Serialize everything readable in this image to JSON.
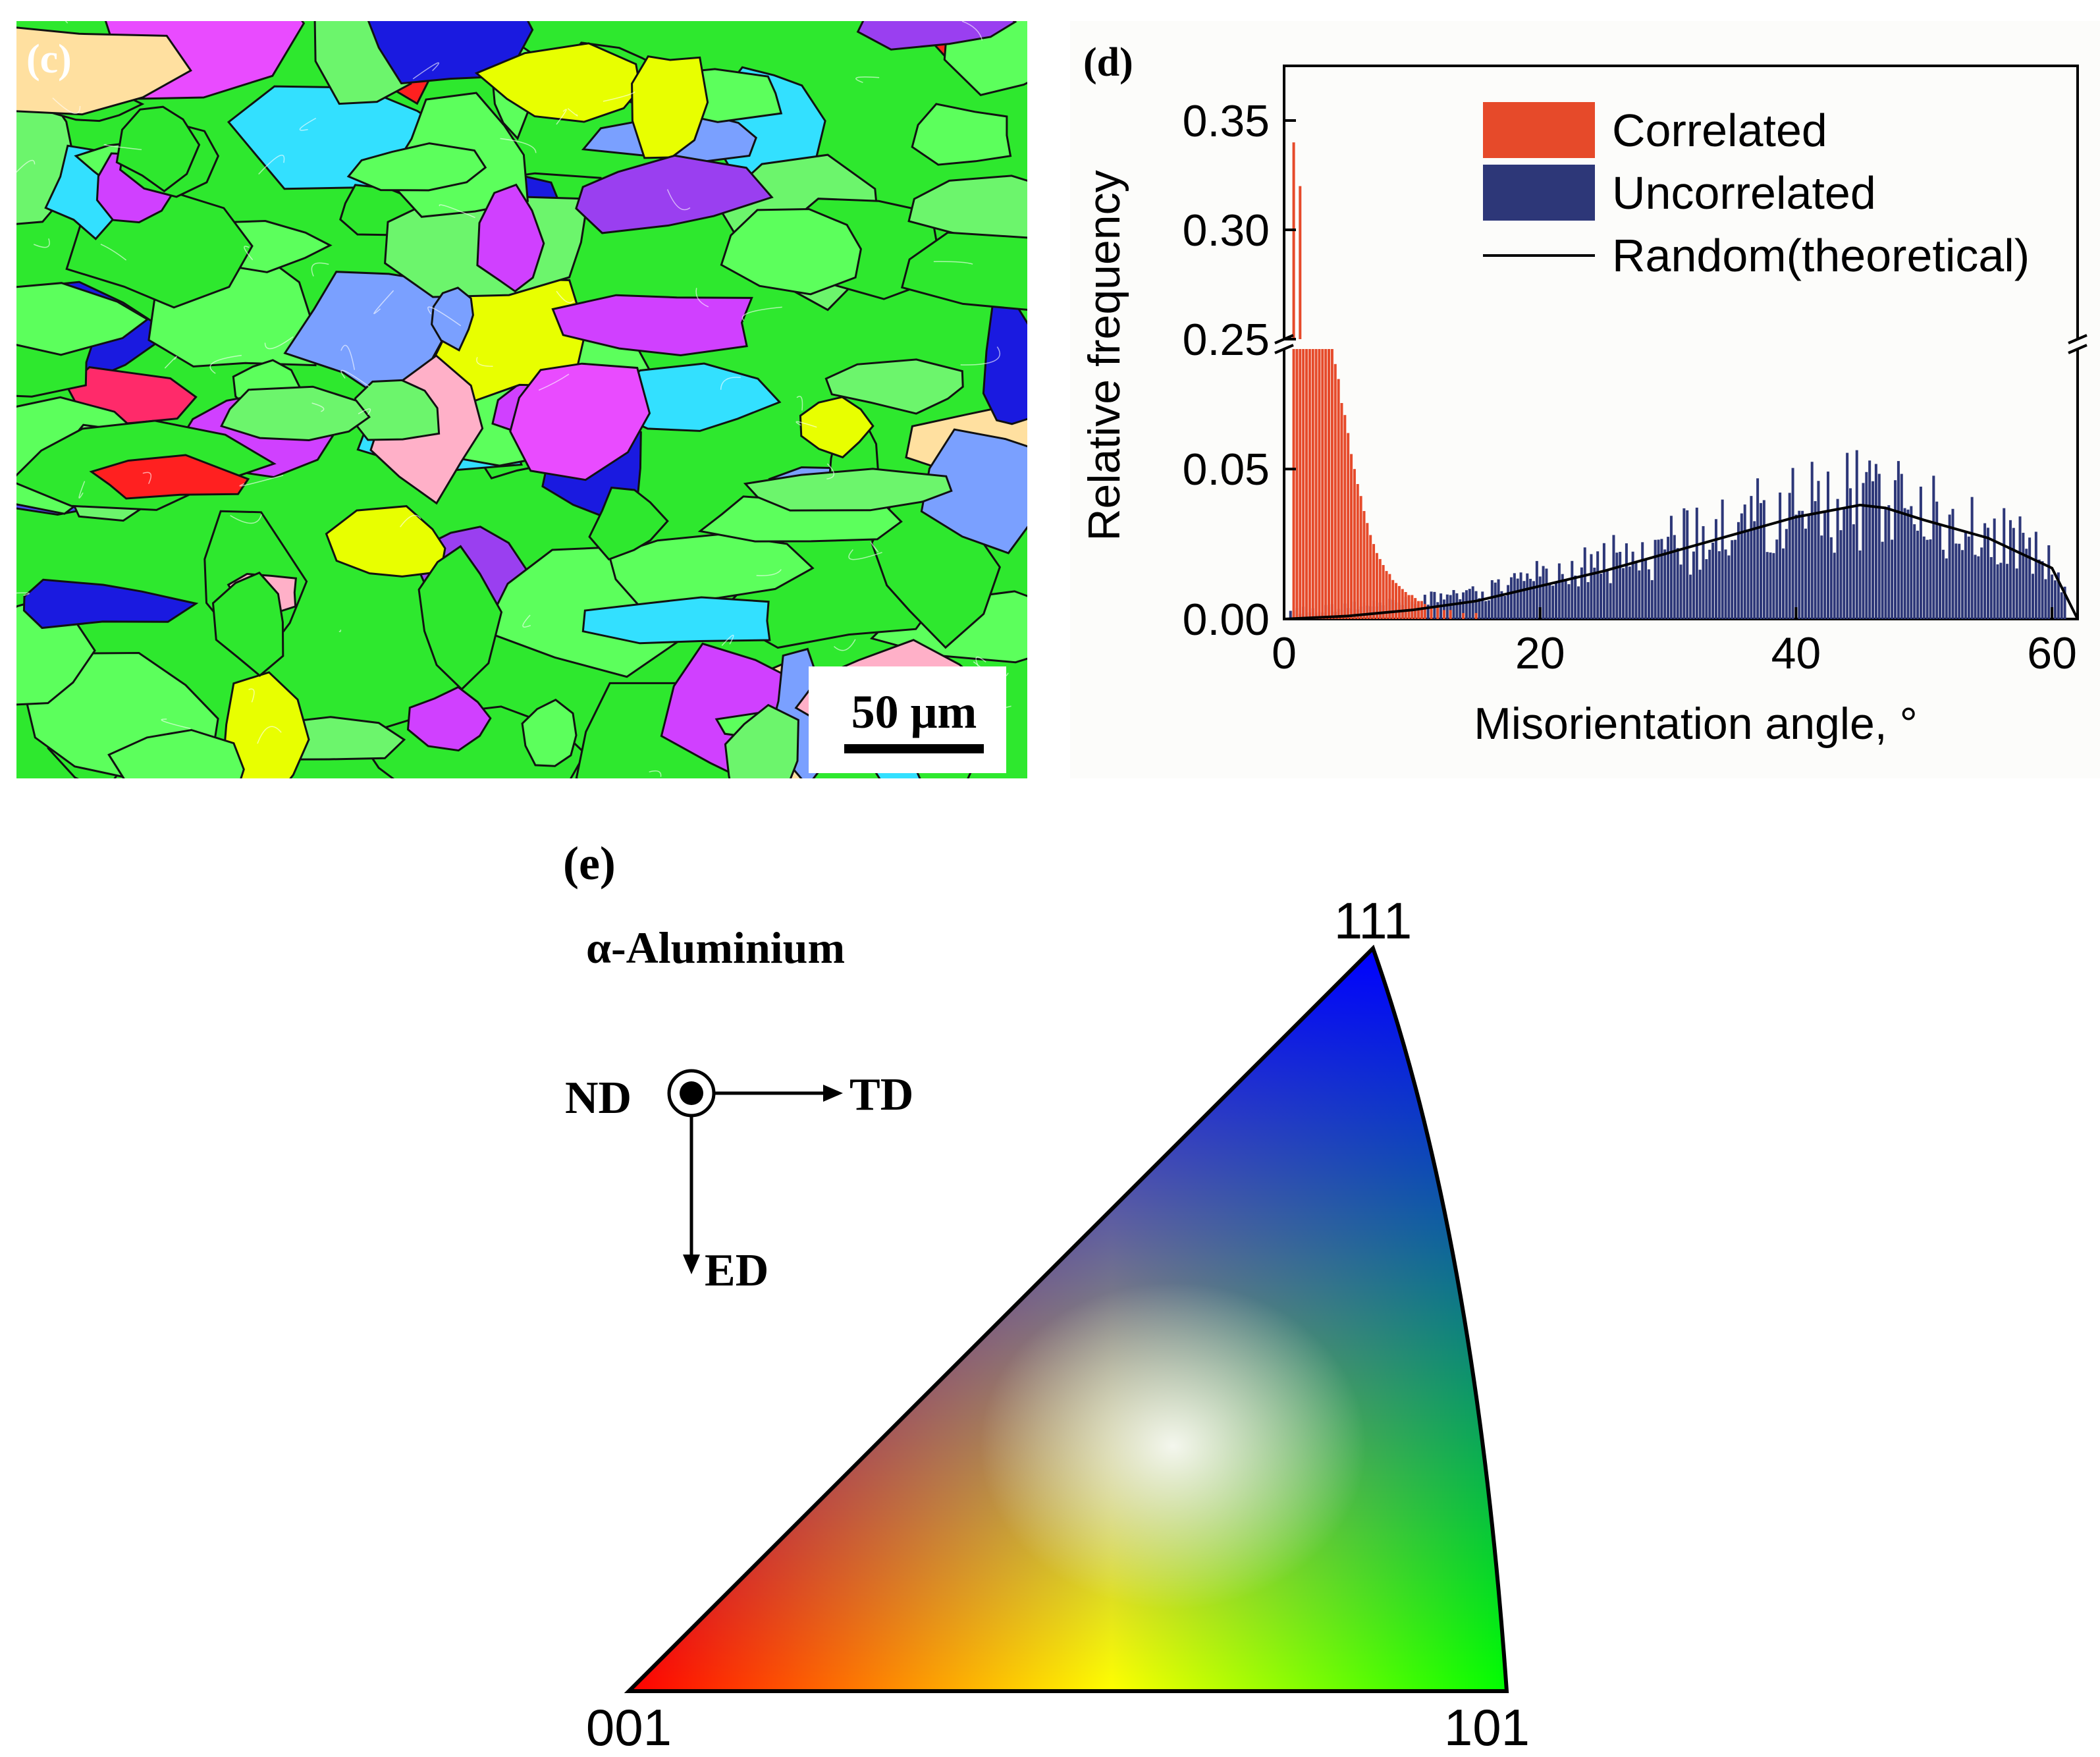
{
  "panel_c": {
    "label": "(c)",
    "scale_bar": "50 μm",
    "grains": [
      {
        "c": "#e8ff00"
      },
      {
        "c": "#2ee82e"
      },
      {
        "c": "#1a1ae0"
      },
      {
        "c": "#ff2a6a"
      },
      {
        "c": "#9a3ff0"
      },
      {
        "c": "#33e0ff"
      },
      {
        "c": "#e94bff"
      },
      {
        "c": "#6cf56c"
      },
      {
        "c": "#ff2020"
      },
      {
        "c": "#7aa0ff"
      },
      {
        "c": "#4a4af5"
      },
      {
        "c": "#ffb0c8"
      },
      {
        "c": "#5cff5c"
      },
      {
        "c": "#d040ff"
      },
      {
        "c": "#ffe0a0"
      }
    ]
  },
  "panel_e": {
    "label": "(e)",
    "title": "α-Aluminium",
    "directions": {
      "nd": "ND",
      "td": "TD",
      "ed": "ED"
    },
    "corners": {
      "top": "111",
      "left": "001",
      "right": "101"
    },
    "colors": {
      "c001": "#ff0000",
      "c101": "#00ff00",
      "c111": "#0000ff"
    }
  },
  "chart_data": {
    "type": "bar",
    "label": "(d)",
    "xlabel": "Misorientation angle, °",
    "ylabel": "Relative frequency",
    "xlim": [
      0,
      62
    ],
    "ylim_lower": [
      0,
      0.09
    ],
    "ylim_upper": [
      0.25,
      0.375
    ],
    "axis_break": [
      0.09,
      0.25
    ],
    "x_ticks": [
      0,
      20,
      40,
      60
    ],
    "x_tick_labels": [
      "0",
      "20",
      "40",
      "60"
    ],
    "y_ticks_lower": [
      0.0,
      0.05
    ],
    "y_tick_labels_lower": [
      "0.00",
      "0.05"
    ],
    "y_ticks_upper": [
      0.25,
      0.3,
      0.35
    ],
    "y_tick_labels_upper": [
      "0.25",
      "0.30",
      "0.35"
    ],
    "legend": {
      "position": "top-right",
      "entries": [
        "Correlated",
        "Uncorrelated",
        "Random(theoretical)"
      ]
    },
    "series": [
      {
        "name": "Correlated",
        "color": "#e64a2a",
        "bin_width": 0.25,
        "x": [
          0.75,
          1.0,
          1.25,
          1.5,
          1.75,
          2.0,
          2.25,
          2.5,
          2.75,
          3.0,
          3.25,
          3.5,
          3.75,
          4.0,
          4.25,
          4.5,
          4.75,
          5.0,
          5.25,
          5.5,
          5.75,
          6.0,
          6.25,
          6.5,
          6.75,
          7.0,
          7.25,
          7.5,
          7.75,
          8.0,
          8.25,
          8.5,
          8.75,
          9.0,
          9.25,
          9.5,
          9.75,
          10.0,
          10.25,
          10.5,
          10.75,
          11.0,
          11.5,
          12.0,
          12.5,
          13.0,
          14.0,
          15.0
        ],
        "values": [
          0.34,
          0.18,
          0.32,
          0.24,
          0.2,
          0.17,
          0.15,
          0.13,
          0.12,
          0.11,
          0.1,
          0.095,
          0.09,
          0.085,
          0.08,
          0.072,
          0.068,
          0.062,
          0.055,
          0.05,
          0.045,
          0.041,
          0.036,
          0.032,
          0.028,
          0.025,
          0.022,
          0.02,
          0.018,
          0.016,
          0.015,
          0.013,
          0.012,
          0.011,
          0.01,
          0.009,
          0.008,
          0.008,
          0.007,
          0.006,
          0.006,
          0.005,
          0.004,
          0.004,
          0.003,
          0.003,
          0.002,
          0.002
        ]
      },
      {
        "name": "Uncorrelated",
        "color": "#2d3778",
        "x_start": 0.5,
        "x_step": 0.25,
        "values_note": "estimated envelope following random distribution with noise",
        "peak": {
          "x": 45.5,
          "y": 0.049
        }
      },
      {
        "name": "Random(theoretical)",
        "color": "#000000",
        "x": [
          0,
          5,
          10,
          15,
          20,
          25,
          30,
          35,
          40,
          45,
          47,
          50,
          55,
          60,
          62
        ],
        "values": [
          0.0,
          0.001,
          0.003,
          0.006,
          0.011,
          0.016,
          0.022,
          0.028,
          0.034,
          0.038,
          0.037,
          0.033,
          0.027,
          0.017,
          0.0
        ]
      }
    ]
  }
}
